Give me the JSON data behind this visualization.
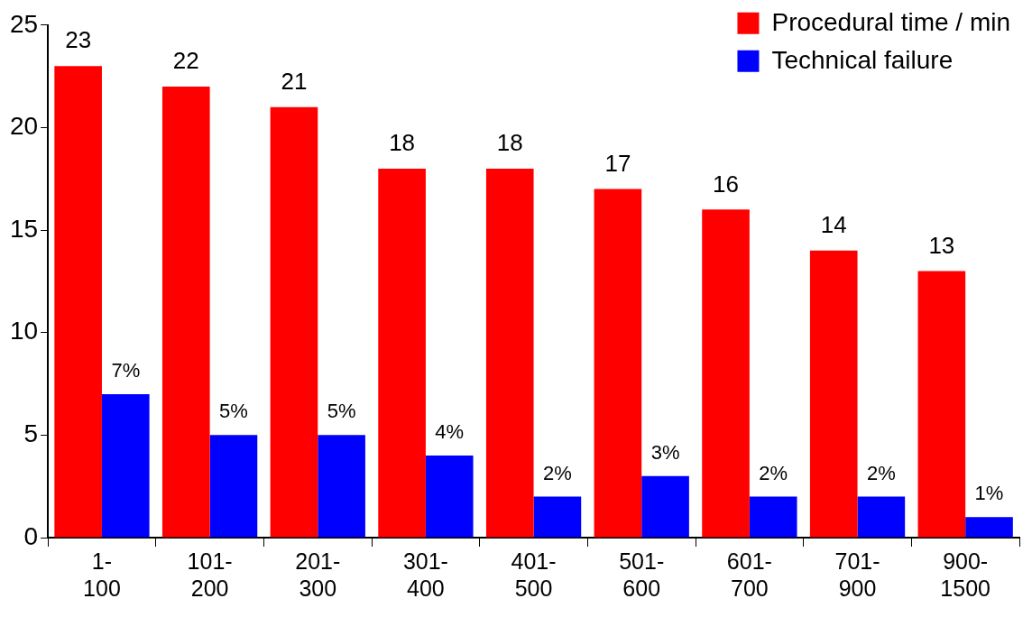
{
  "chart_data": {
    "type": "bar",
    "categories": [
      "1-100",
      "101-200",
      "201-300",
      "301-400",
      "401-500",
      "501-600",
      "601-700",
      "701-900",
      "900-1500"
    ],
    "series": [
      {
        "name": "Procedural time / min",
        "color": "#ff0000",
        "values": [
          23,
          22,
          21,
          18,
          18,
          17,
          16,
          14,
          13
        ],
        "value_labels": [
          "23",
          "22",
          "21",
          "18",
          "18",
          "17",
          "16",
          "14",
          "13"
        ]
      },
      {
        "name": "Technical failure",
        "color": "#0000ff",
        "values": [
          7,
          5,
          5,
          4,
          2,
          3,
          2,
          2,
          1
        ],
        "value_labels": [
          "7%",
          "5%",
          "5%",
          "4%",
          "2%",
          "3%",
          "2%",
          "2%",
          "1%"
        ]
      }
    ],
    "ylim": [
      0,
      25
    ],
    "yticks": [
      0,
      5,
      10,
      15,
      20,
      25
    ],
    "grid": false,
    "legend": "top right"
  }
}
